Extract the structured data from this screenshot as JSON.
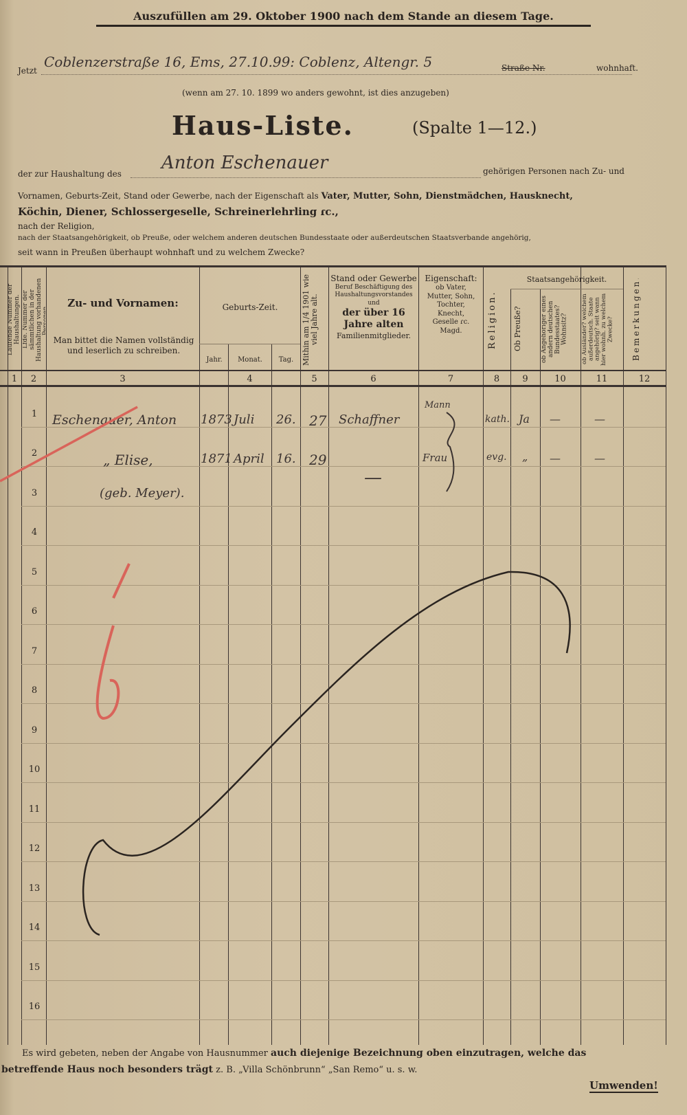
{
  "header_note": "Auszufüllen am 29. Oktober 1900 nach dem Stande an diesem Tage.",
  "address": {
    "prefix": "Jetzt",
    "handwritten": "Coblenzerstraße 16, Ems, 27.10.99: Coblenz, Altengr. 5",
    "printed_suffix": "Straße Nr.",
    "suffix": "wohnhaft.",
    "note": "(wenn am 27. 10. 1899 wo anders gewohnt, ist dies anzugeben)"
  },
  "title": "Haus-Liste.",
  "subtitle": "(Spalte 1—12.)",
  "household": {
    "prefix": "der zur Haushaltung des",
    "handwritten_name": "Anton Eschenauer",
    "suffix": "gehörigen Personen nach Zu- und"
  },
  "instructions": {
    "line1": "Vornamen, Geburts-Zeit, Stand oder Gewerbe, nach der Eigenschaft als",
    "line1_bold": "Vater, Mutter, Sohn, Dienstmädchen, Hausknecht,",
    "line2_bold": "Köchin, Diener, Schlossergeselle, Schreinerlehrling ɾc.,",
    "line3": "nach der Religion,",
    "line4": "nach der Staatsangehörigkeit, ob Preuße, oder welchem anderen deutschen Bundesstaate oder außerdeutschen Staatsverbande angehörig,",
    "line5": "seit wann in Preußen überhaupt wohnhaft und zu welchem Zwecke?"
  },
  "table": {
    "headers": {
      "c1": "Laufende Nummer der Haushaltungen.",
      "c2": "Lfde. Nummer der sämmtlichen in der Haushaltung vorhandenen Personen.",
      "c3_title": "Zu- und Vornamen:",
      "c3_note": "Man bittet die Namen vollständig und leserlich zu schreiben.",
      "c4_title": "Geburts-Zeit.",
      "c4_year": "Jahr.",
      "c4_month": "Monat.",
      "c4_day": "Tag.",
      "c5": "Mithin am 1/4 1901 wie viel Jahre alt.",
      "c6_title": "Stand oder Gewerbe",
      "c6_note": "Beruf Beschäftigung des Haushaltungsvorstandes und",
      "c6_bold": "der über 16 Jahre alten",
      "c6_end": "Familienmitglieder.",
      "c7_title": "Eigenschaft:",
      "c7_note": "ob Vater, Mutter, Sohn, Tochter, Knecht, Geselle ɾc. Magd.",
      "c8": "Religion.",
      "c9_11_title": "Staatsangehörigkeit.",
      "c9": "Ob Preuße?",
      "c10": "ob Angehöriger eines andern deutschen Bundesstaates? Wohnsitz?",
      "c11": "ob Ausländer? welchem außerdeutsch. Staate angehörig? seit wann hier wohnh. zu welchem Zwecke?",
      "c12": "Bemerkungen."
    },
    "column_numbers": [
      "1",
      "2",
      "3",
      "4",
      "5",
      "6",
      "7",
      "8",
      "9",
      "10",
      "11",
      "12"
    ],
    "row_numbers": [
      "1",
      "2",
      "3",
      "4",
      "5",
      "6",
      "7",
      "8",
      "9",
      "10",
      "11",
      "12",
      "13",
      "14",
      "15",
      "16"
    ],
    "entries": [
      {
        "name": "Eschenauer, Anton",
        "year": "1873",
        "month": "Juli",
        "day": "26.",
        "age": "27",
        "occupation": "Schaffner",
        "relation": "Mann",
        "religion": "kath.",
        "prussian": "Ja",
        "c10": "—",
        "c11": "—"
      },
      {
        "name": "„ Elise,",
        "maiden": "(geb. Meyer).",
        "year": "1871",
        "month": "April",
        "day": "16.",
        "age": "29",
        "occupation": "—",
        "relation": "Frau",
        "religion": "evg.",
        "prussian": "„",
        "c10": "—",
        "c11": "—"
      }
    ],
    "red_mark": "6"
  },
  "footer": {
    "line1": "Es wird gebeten, neben der Angabe von Hausnummer",
    "line1_bold": "auch diejenige Bezeichnung oben einzutragen, welche das",
    "line2_bold": "betreffende Haus noch besonders trägt",
    "line2": "z. B. „Villa Schönbrunn“ „San Remo“ u. s. w.",
    "turn": "Umwenden!"
  },
  "colors": {
    "paper": "#d3c3a5",
    "ink": "#2a2420",
    "red_pencil": "#d9645a"
  }
}
